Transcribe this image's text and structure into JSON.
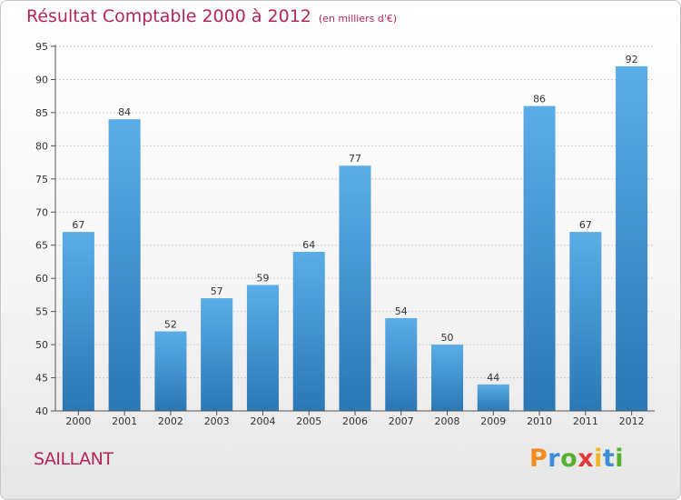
{
  "title": "Résultat Comptable 2000 à 2012",
  "subtitle": "(en milliers d'€)",
  "town": "SAILLANT",
  "logo_text": "Proxiti",
  "logo_letter_colors": [
    "#f28c1f",
    "#3b8fd6",
    "#58b031",
    "#e23a3a",
    "#f2b41f",
    "#3b8fd6",
    "#58b031"
  ],
  "colors": {
    "title": "#b5245b",
    "bar_top": "#5aade6",
    "bar_bottom": "#2a77b4",
    "grid": "#cfcfcf"
  },
  "chart_data": {
    "type": "bar",
    "title": "Résultat Comptable 2000 à 2012",
    "subtitle": "(en milliers d'€)",
    "categories": [
      "2000",
      "2001",
      "2002",
      "2003",
      "2004",
      "2005",
      "2006",
      "2007",
      "2008",
      "2009",
      "2010",
      "2011",
      "2012"
    ],
    "values": [
      67,
      84,
      52,
      57,
      59,
      64,
      77,
      54,
      50,
      44,
      86,
      67,
      92
    ],
    "ylim": [
      40,
      95
    ],
    "yticks": [
      40,
      45,
      50,
      55,
      60,
      65,
      70,
      75,
      80,
      85,
      90,
      95
    ],
    "grid": true,
    "data_labels": true
  }
}
